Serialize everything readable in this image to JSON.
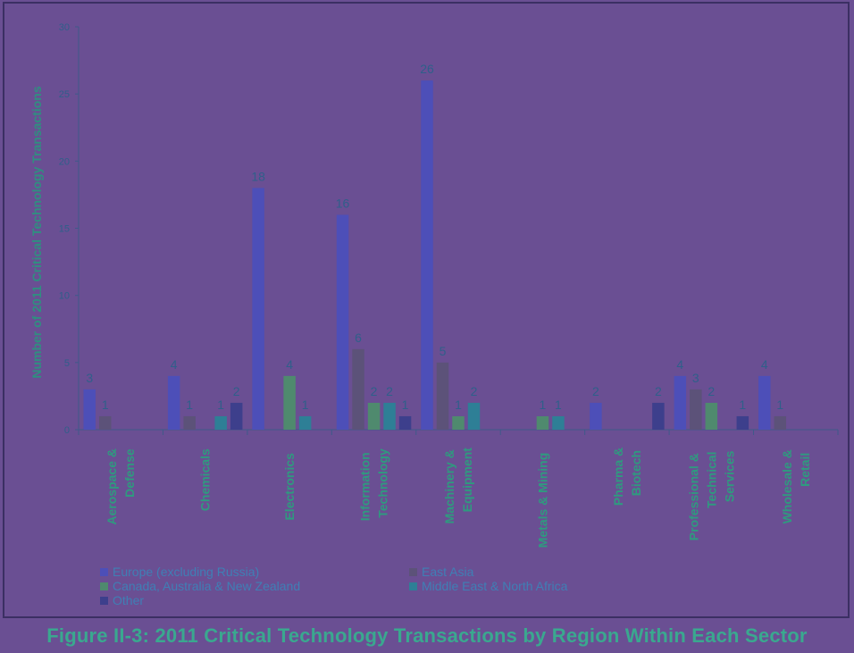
{
  "figure_caption": "Figure II-3: 2011 Critical Technology Transactions by Region Within Each Sector",
  "chart_data": {
    "type": "bar",
    "title": "",
    "xlabel": "",
    "ylabel": "Number of 2011 Critical Technology Transactions",
    "ylim": [
      0,
      30
    ],
    "yticks": [
      0,
      5,
      10,
      15,
      20,
      25,
      30
    ],
    "categories": [
      "Aerospace & Defense",
      "Chemicals",
      "Electronics",
      "Information Technology",
      "Machinery & Equipment",
      "Metals & Mining",
      "Pharma & Biotech",
      "Professional & Technical Services",
      "Wholesale & Retail"
    ],
    "series": [
      {
        "name": "Europe (excluding Russia)",
        "color": "#4d4fb8",
        "values": [
          3,
          4,
          18,
          16,
          26,
          0,
          2,
          4,
          4
        ]
      },
      {
        "name": "East Asia",
        "color": "#5c5279",
        "values": [
          1,
          1,
          0,
          6,
          5,
          0,
          0,
          3,
          1
        ]
      },
      {
        "name": "Canada, Australia & New Zealand",
        "color": "#4f8a6e",
        "values": [
          0,
          0,
          4,
          2,
          1,
          1,
          0,
          2,
          0
        ]
      },
      {
        "name": "Middle East & North Africa",
        "color": "#2e7f96",
        "values": [
          0,
          1,
          1,
          2,
          2,
          1,
          0,
          0,
          0
        ]
      },
      {
        "name": "Other",
        "color": "#3d3f8c",
        "values": [
          0,
          2,
          0,
          1,
          0,
          0,
          2,
          1,
          0
        ]
      }
    ],
    "grid": false,
    "legend_position": "bottom"
  }
}
